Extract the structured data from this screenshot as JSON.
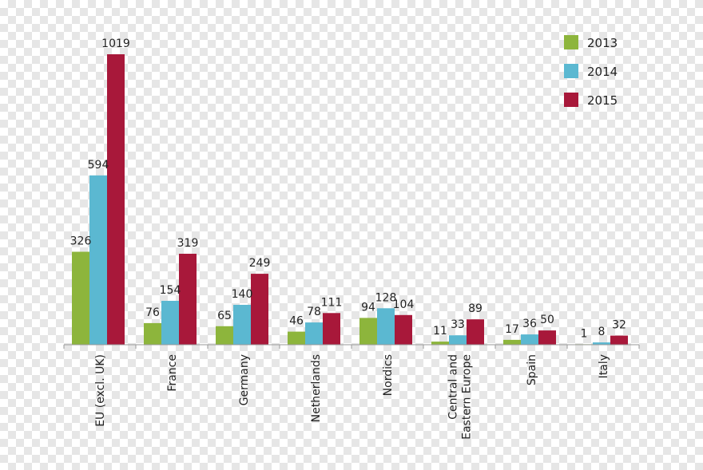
{
  "chart_data": {
    "type": "bar",
    "title": "",
    "xlabel": "",
    "ylabel": "",
    "ylim": [
      0,
      1019
    ],
    "grid": false,
    "legend_position": "top-right",
    "categories": [
      "EU (excl. UK)",
      "France",
      "Germany",
      "Netherlands",
      "Nordics",
      "Central and Eastern Europe",
      "Spain",
      "Italy"
    ],
    "category_lines": [
      [
        "EU (excl. UK)"
      ],
      [
        "France"
      ],
      [
        "Germany"
      ],
      [
        "Netherlands"
      ],
      [
        "Nordics"
      ],
      [
        "Central and",
        "Eastern Europe"
      ],
      [
        "Spain"
      ],
      [
        "Italy"
      ]
    ],
    "series": [
      {
        "name": "2013",
        "color": "#8db53c",
        "values": [
          326,
          76,
          65,
          46,
          94,
          11,
          17,
          1
        ]
      },
      {
        "name": "2014",
        "color": "#5bb8d1",
        "values": [
          594,
          154,
          140,
          78,
          128,
          33,
          36,
          8
        ]
      },
      {
        "name": "2015",
        "color": "#a8183a",
        "values": [
          1019,
          319,
          249,
          111,
          104,
          89,
          50,
          32
        ]
      }
    ]
  }
}
